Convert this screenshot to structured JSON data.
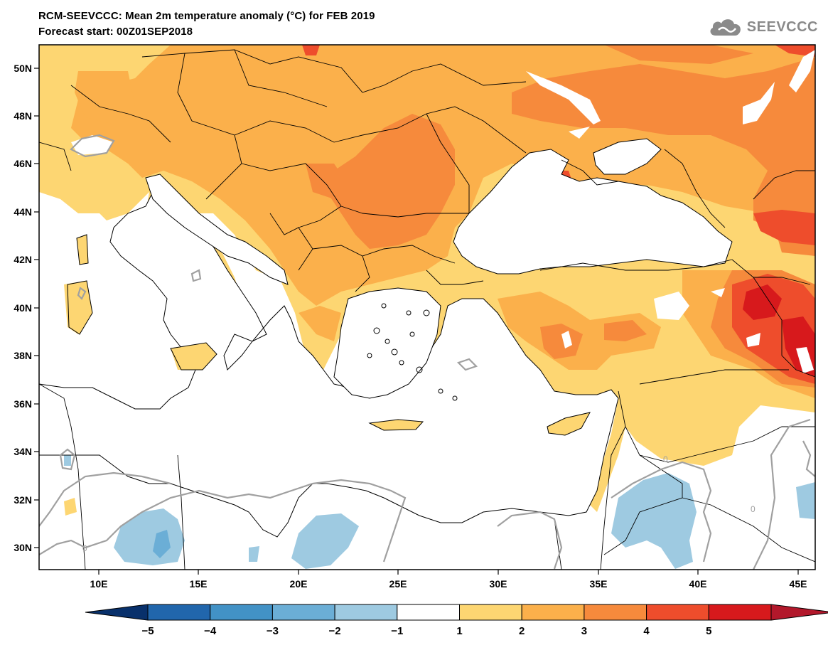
{
  "header": {
    "title_line1": "RCM-SEEVCCC: Mean 2m temperature anomaly (°C) for FEB 2019",
    "title_line2": "Forecast start: 00Z01SEP2018",
    "logo_text": "SEEVCCC",
    "logo_icon": "cloud-icon"
  },
  "map": {
    "lat_labels": [
      "50N",
      "48N",
      "46N",
      "44N",
      "42N",
      "40N",
      "38N",
      "36N",
      "34N",
      "32N",
      "30N"
    ],
    "lon_labels": [
      "10E",
      "15E",
      "20E",
      "25E",
      "30E",
      "35E",
      "40E",
      "45E"
    ],
    "contour_label": "0",
    "colors": {
      "white": "#ffffff",
      "light_orange": "#fdd672",
      "orange1": "#fbb04b",
      "orange2": "#f68a3c",
      "red1": "#ee4d2c",
      "red2": "#d7191c",
      "blue_light": "#9ecae1",
      "blue_mid": "#6baed6",
      "contour_gray": "#a0a0a0"
    }
  },
  "colorbar": {
    "labels": [
      "−5",
      "−4",
      "−3",
      "−2",
      "−1",
      "1",
      "2",
      "3",
      "4",
      "5"
    ],
    "colors": [
      "#08306b",
      "#2166ac",
      "#4292c6",
      "#6baed6",
      "#9ecae1",
      "#ffffff",
      "#fdd672",
      "#fbb04b",
      "#f68a3c",
      "#ee4d2c",
      "#d7191c",
      "#b2182b"
    ]
  }
}
